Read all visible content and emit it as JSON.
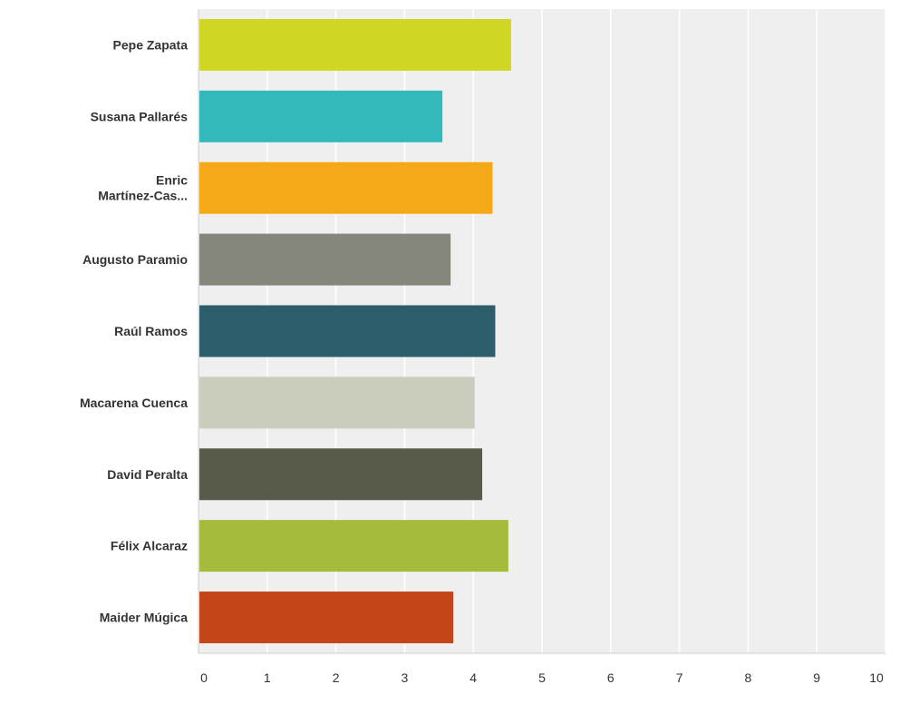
{
  "chart_data": {
    "type": "bar",
    "orientation": "horizontal",
    "categories": [
      [
        "Pepe Zapata"
      ],
      [
        "Susana Pallarés"
      ],
      [
        "Enric",
        "Martínez-Cas..."
      ],
      [
        "Augusto Paramio"
      ],
      [
        "Raúl Ramos"
      ],
      [
        "Macarena Cuenca"
      ],
      [
        "David Peralta"
      ],
      [
        "Félix Alcaraz"
      ],
      [
        "Maider Múgica"
      ]
    ],
    "values": [
      4.55,
      3.55,
      4.28,
      3.67,
      4.32,
      4.02,
      4.13,
      4.51,
      3.71
    ],
    "colors": [
      "#cfd624",
      "#31b9bb",
      "#f6a916",
      "#85877a",
      "#2b5d6b",
      "#cacdbc",
      "#585b49",
      "#a5bb3c",
      "#c54418"
    ],
    "xlim": [
      0,
      10
    ],
    "xticks": [
      "0",
      "1",
      "2",
      "3",
      "4",
      "5",
      "6",
      "7",
      "8",
      "9",
      "10"
    ],
    "grid": true,
    "plot_background": "#efefef",
    "grid_color": "#ffffff",
    "axis_color": "#cccccc"
  }
}
